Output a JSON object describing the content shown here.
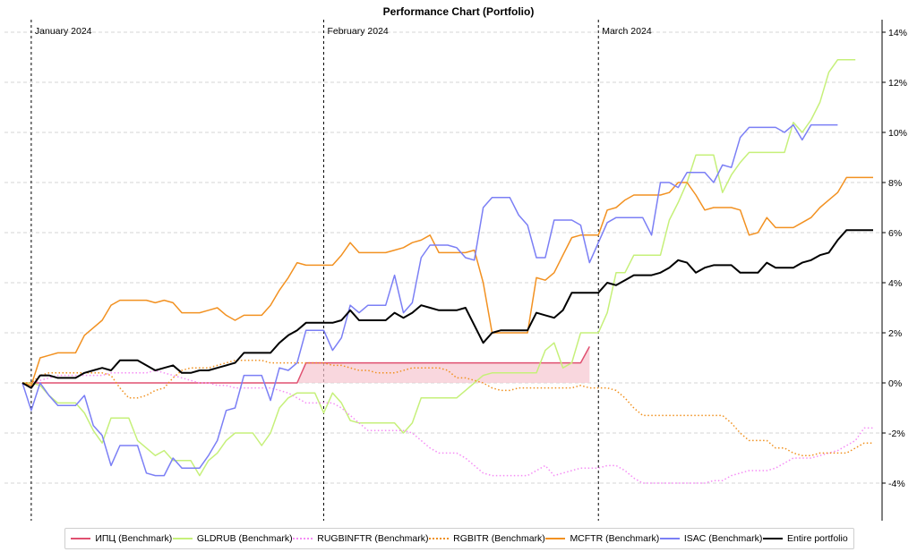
{
  "chart_data": {
    "type": "line",
    "title": "Performance Chart (Portfolio)",
    "xlabel": "",
    "ylabel": "",
    "y_unit": "%",
    "ylim": [
      -5.5,
      14.5
    ],
    "y_ticks": [
      -4,
      -2,
      0,
      2,
      4,
      6,
      8,
      10,
      12,
      14
    ],
    "y_tick_labels": [
      "-4%",
      "-2%",
      "0%",
      "2%",
      "4%",
      "6%",
      "8%",
      "10%",
      "12%",
      "14%"
    ],
    "y_axis_side": "right",
    "grid": "horizontal dashed",
    "month_markers": [
      {
        "label": "January 2024",
        "index": 1
      },
      {
        "label": "February 2024",
        "index": 34
      },
      {
        "label": "March 2024",
        "index": 65
      }
    ],
    "n_points": 97,
    "legend_position": "bottom",
    "series": [
      {
        "name": "ИПЦ (Benchmark)",
        "color": "#e05070",
        "style": "solid",
        "fill": "#f7c6d0",
        "values": [
          0,
          0,
          0,
          0,
          0,
          0,
          0,
          0,
          0,
          0,
          0,
          0,
          0,
          0,
          0,
          0,
          0,
          0,
          0,
          0,
          0,
          0,
          0,
          0,
          0,
          0,
          0,
          0,
          0,
          0,
          0,
          0,
          0.8,
          0.8,
          0.8,
          0.8,
          0.8,
          0.8,
          0.8,
          0.8,
          0.8,
          0.8,
          0.8,
          0.8,
          0.8,
          0.8,
          0.8,
          0.8,
          0.8,
          0.8,
          0.8,
          0.8,
          0.8,
          0.8,
          0.8,
          0.8,
          0.8,
          0.8,
          0.8,
          0.8,
          0.8,
          0.8,
          0.8,
          0.8,
          1.45
        ]
      },
      {
        "name": "GLDRUB (Benchmark)",
        "color": "#c6f07a",
        "style": "solid",
        "values": [
          0,
          0,
          -0.1,
          -0.5,
          -0.8,
          -0.8,
          -0.8,
          -1.2,
          -1.9,
          -2.4,
          -1.4,
          -1.4,
          -1.4,
          -2.3,
          -2.6,
          -2.9,
          -2.7,
          -3.1,
          -3.1,
          -3.1,
          -3.7,
          -3.1,
          -2.8,
          -2.3,
          -2.0,
          -2.0,
          -2.0,
          -2.5,
          -2.0,
          -1.0,
          -0.6,
          -0.4,
          -0.4,
          -0.4,
          -1.2,
          -0.4,
          -0.8,
          -1.5,
          -1.6,
          -1.6,
          -1.6,
          -1.6,
          -1.6,
          -2.0,
          -1.6,
          -0.6,
          -0.6,
          -0.6,
          -0.6,
          -0.6,
          -0.3,
          0,
          0.3,
          0.4,
          0.4,
          0.4,
          0.4,
          0.4,
          0.4,
          1.3,
          1.6,
          0.6,
          0.8,
          2.0,
          2.0,
          2.0,
          2.8,
          4.4,
          4.4,
          5.1,
          5.1,
          5.1,
          5.1,
          6.5,
          7.2,
          8.0,
          9.1,
          9.1,
          9.1,
          7.6,
          8.3,
          8.8,
          9.2,
          9.2,
          9.2,
          9.2,
          9.2,
          10.4,
          10.0,
          10.5,
          11.2,
          12.4,
          12.9,
          12.9,
          12.9
        ]
      },
      {
        "name": "RUGBINFTR (Benchmark)",
        "color": "#f58cf5",
        "style": "dotted",
        "values": [
          0,
          0,
          0.1,
          0.2,
          0.3,
          0.3,
          0.3,
          0.3,
          0.3,
          0.3,
          0.4,
          0.4,
          0.4,
          0.4,
          0.4,
          0.5,
          0.4,
          0.3,
          0.2,
          0.1,
          0,
          0,
          -0.1,
          -0.1,
          -0.2,
          -0.2,
          -0.2,
          -0.2,
          -0.2,
          -0.3,
          -0.4,
          -0.6,
          -0.8,
          -0.8,
          -0.8,
          -0.8,
          -1.0,
          -1.3,
          -1.6,
          -1.9,
          -1.9,
          -1.9,
          -1.9,
          -1.9,
          -2.0,
          -2.3,
          -2.6,
          -2.8,
          -2.8,
          -2.8,
          -3.0,
          -3.3,
          -3.6,
          -3.7,
          -3.7,
          -3.7,
          -3.7,
          -3.7,
          -3.5,
          -3.3,
          -3.7,
          -3.6,
          -3.5,
          -3.4,
          -3.4,
          -3.4,
          -3.3,
          -3.3,
          -3.5,
          -3.8,
          -4.0,
          -4.0,
          -4.0,
          -4.0,
          -4.0,
          -4.0,
          -4.0,
          -4.0,
          -3.9,
          -3.9,
          -3.7,
          -3.6,
          -3.5,
          -3.5,
          -3.5,
          -3.4,
          -3.2,
          -3.0,
          -3.0,
          -3.0,
          -2.9,
          -2.8,
          -2.7,
          -2.5,
          -2.3,
          -1.8,
          -1.8
        ]
      },
      {
        "name": "RGBITR (Benchmark)",
        "color": "#f0901e",
        "style": "dotted",
        "values": [
          0,
          0,
          0.3,
          0.4,
          0.4,
          0.4,
          0.4,
          0.4,
          0.4,
          0.4,
          0.3,
          -0.2,
          -0.6,
          -0.6,
          -0.5,
          -0.3,
          -0.2,
          0.2,
          0.5,
          0.6,
          0.6,
          0.6,
          0.7,
          0.8,
          0.9,
          0.9,
          0.9,
          0.9,
          0.8,
          0.8,
          0.8,
          0.8,
          0.8,
          0.8,
          0.8,
          0.7,
          0.7,
          0.6,
          0.5,
          0.5,
          0.4,
          0.4,
          0.4,
          0.5,
          0.6,
          0.6,
          0.6,
          0.6,
          0.5,
          0.2,
          0.2,
          0.1,
          0,
          -0.2,
          -0.3,
          -0.3,
          -0.2,
          -0.2,
          -0.2,
          -0.2,
          -0.2,
          -0.2,
          -0.2,
          -0.1,
          -0.2,
          -0.2,
          -0.2,
          -0.3,
          -0.6,
          -1.0,
          -1.3,
          -1.3,
          -1.3,
          -1.3,
          -1.3,
          -1.3,
          -1.3,
          -1.3,
          -1.3,
          -1.3,
          -1.6,
          -2.0,
          -2.3,
          -2.3,
          -2.3,
          -2.6,
          -2.6,
          -2.8,
          -2.9,
          -2.9,
          -2.8,
          -2.8,
          -2.8,
          -2.8,
          -2.6,
          -2.4,
          -2.4
        ]
      },
      {
        "name": "MCFTR (Benchmark)",
        "color": "#f29121",
        "style": "solid",
        "values": [
          0,
          -0.1,
          1.0,
          1.1,
          1.2,
          1.2,
          1.2,
          1.9,
          2.2,
          2.5,
          3.1,
          3.3,
          3.3,
          3.3,
          3.3,
          3.2,
          3.3,
          3.2,
          2.8,
          2.8,
          2.8,
          2.9,
          3.0,
          2.7,
          2.5,
          2.7,
          2.7,
          2.7,
          3.1,
          3.7,
          4.2,
          4.8,
          4.7,
          4.7,
          4.7,
          4.7,
          5.1,
          5.6,
          5.2,
          5.2,
          5.2,
          5.2,
          5.3,
          5.4,
          5.6,
          5.7,
          5.9,
          5.2,
          5.2,
          5.2,
          5.2,
          5.3,
          4.0,
          2.0,
          2.0,
          2.0,
          2.0,
          2.0,
          4.2,
          4.1,
          4.4,
          5.1,
          5.8,
          5.9,
          5.9,
          5.9,
          6.9,
          7.0,
          7.3,
          7.5,
          7.5,
          7.5,
          7.5,
          7.6,
          8.0,
          8.0,
          7.5,
          6.9,
          7.0,
          7.0,
          7.0,
          6.9,
          5.9,
          6.0,
          6.6,
          6.2,
          6.2,
          6.2,
          6.4,
          6.6,
          7.0,
          7.3,
          7.6,
          8.2,
          8.2,
          8.2,
          8.2
        ]
      },
      {
        "name": "ISAC (Benchmark)",
        "color": "#7b7ff5",
        "style": "solid",
        "values": [
          0,
          -1.1,
          0,
          -0.5,
          -0.9,
          -0.9,
          -0.9,
          -0.5,
          -1.7,
          -2.1,
          -3.3,
          -2.5,
          -2.5,
          -2.5,
          -3.6,
          -3.7,
          -3.7,
          -3.0,
          -3.4,
          -3.4,
          -3.4,
          -2.9,
          -2.3,
          -1.1,
          -1.0,
          0.3,
          0.3,
          0.3,
          -0.7,
          0.6,
          0.5,
          0.8,
          2.1,
          2.1,
          2.1,
          1.3,
          1.8,
          3.1,
          2.8,
          3.1,
          3.1,
          3.1,
          4.3,
          2.8,
          3.2,
          5.0,
          5.5,
          5.5,
          5.5,
          5.4,
          5.0,
          4.9,
          7.0,
          7.4,
          7.4,
          7.4,
          6.7,
          6.3,
          5.0,
          5.0,
          6.5,
          6.5,
          6.5,
          6.3,
          4.8,
          5.6,
          6.4,
          6.6,
          6.6,
          6.6,
          6.6,
          5.9,
          8.0,
          8.0,
          7.8,
          8.4,
          8.4,
          8.4,
          8.0,
          8.7,
          8.6,
          9.8,
          10.2,
          10.2,
          10.2,
          10.2,
          10.0,
          10.3,
          9.7,
          10.3,
          10.3,
          10.3,
          10.3
        ]
      },
      {
        "name": "Entire portfolio",
        "color": "#000000",
        "style": "solid",
        "values": [
          0,
          -0.2,
          0.3,
          0.3,
          0.2,
          0.2,
          0.2,
          0.4,
          0.5,
          0.6,
          0.5,
          0.9,
          0.9,
          0.9,
          0.7,
          0.5,
          0.6,
          0.7,
          0.4,
          0.4,
          0.5,
          0.5,
          0.6,
          0.7,
          0.8,
          1.2,
          1.2,
          1.2,
          1.2,
          1.6,
          1.9,
          2.1,
          2.4,
          2.4,
          2.4,
          2.4,
          2.5,
          2.9,
          2.5,
          2.5,
          2.5,
          2.5,
          2.8,
          2.6,
          2.8,
          3.1,
          3.0,
          2.9,
          2.9,
          2.9,
          3.0,
          2.3,
          1.6,
          2.0,
          2.1,
          2.1,
          2.1,
          2.1,
          2.8,
          2.7,
          2.6,
          2.9,
          3.6,
          3.6,
          3.6,
          3.6,
          4.0,
          3.9,
          4.1,
          4.3,
          4.3,
          4.3,
          4.4,
          4.6,
          4.9,
          4.8,
          4.4,
          4.6,
          4.7,
          4.7,
          4.7,
          4.4,
          4.4,
          4.4,
          4.8,
          4.6,
          4.6,
          4.6,
          4.8,
          4.9,
          5.1,
          5.2,
          5.7,
          6.1,
          6.1,
          6.1,
          6.1
        ]
      }
    ]
  }
}
